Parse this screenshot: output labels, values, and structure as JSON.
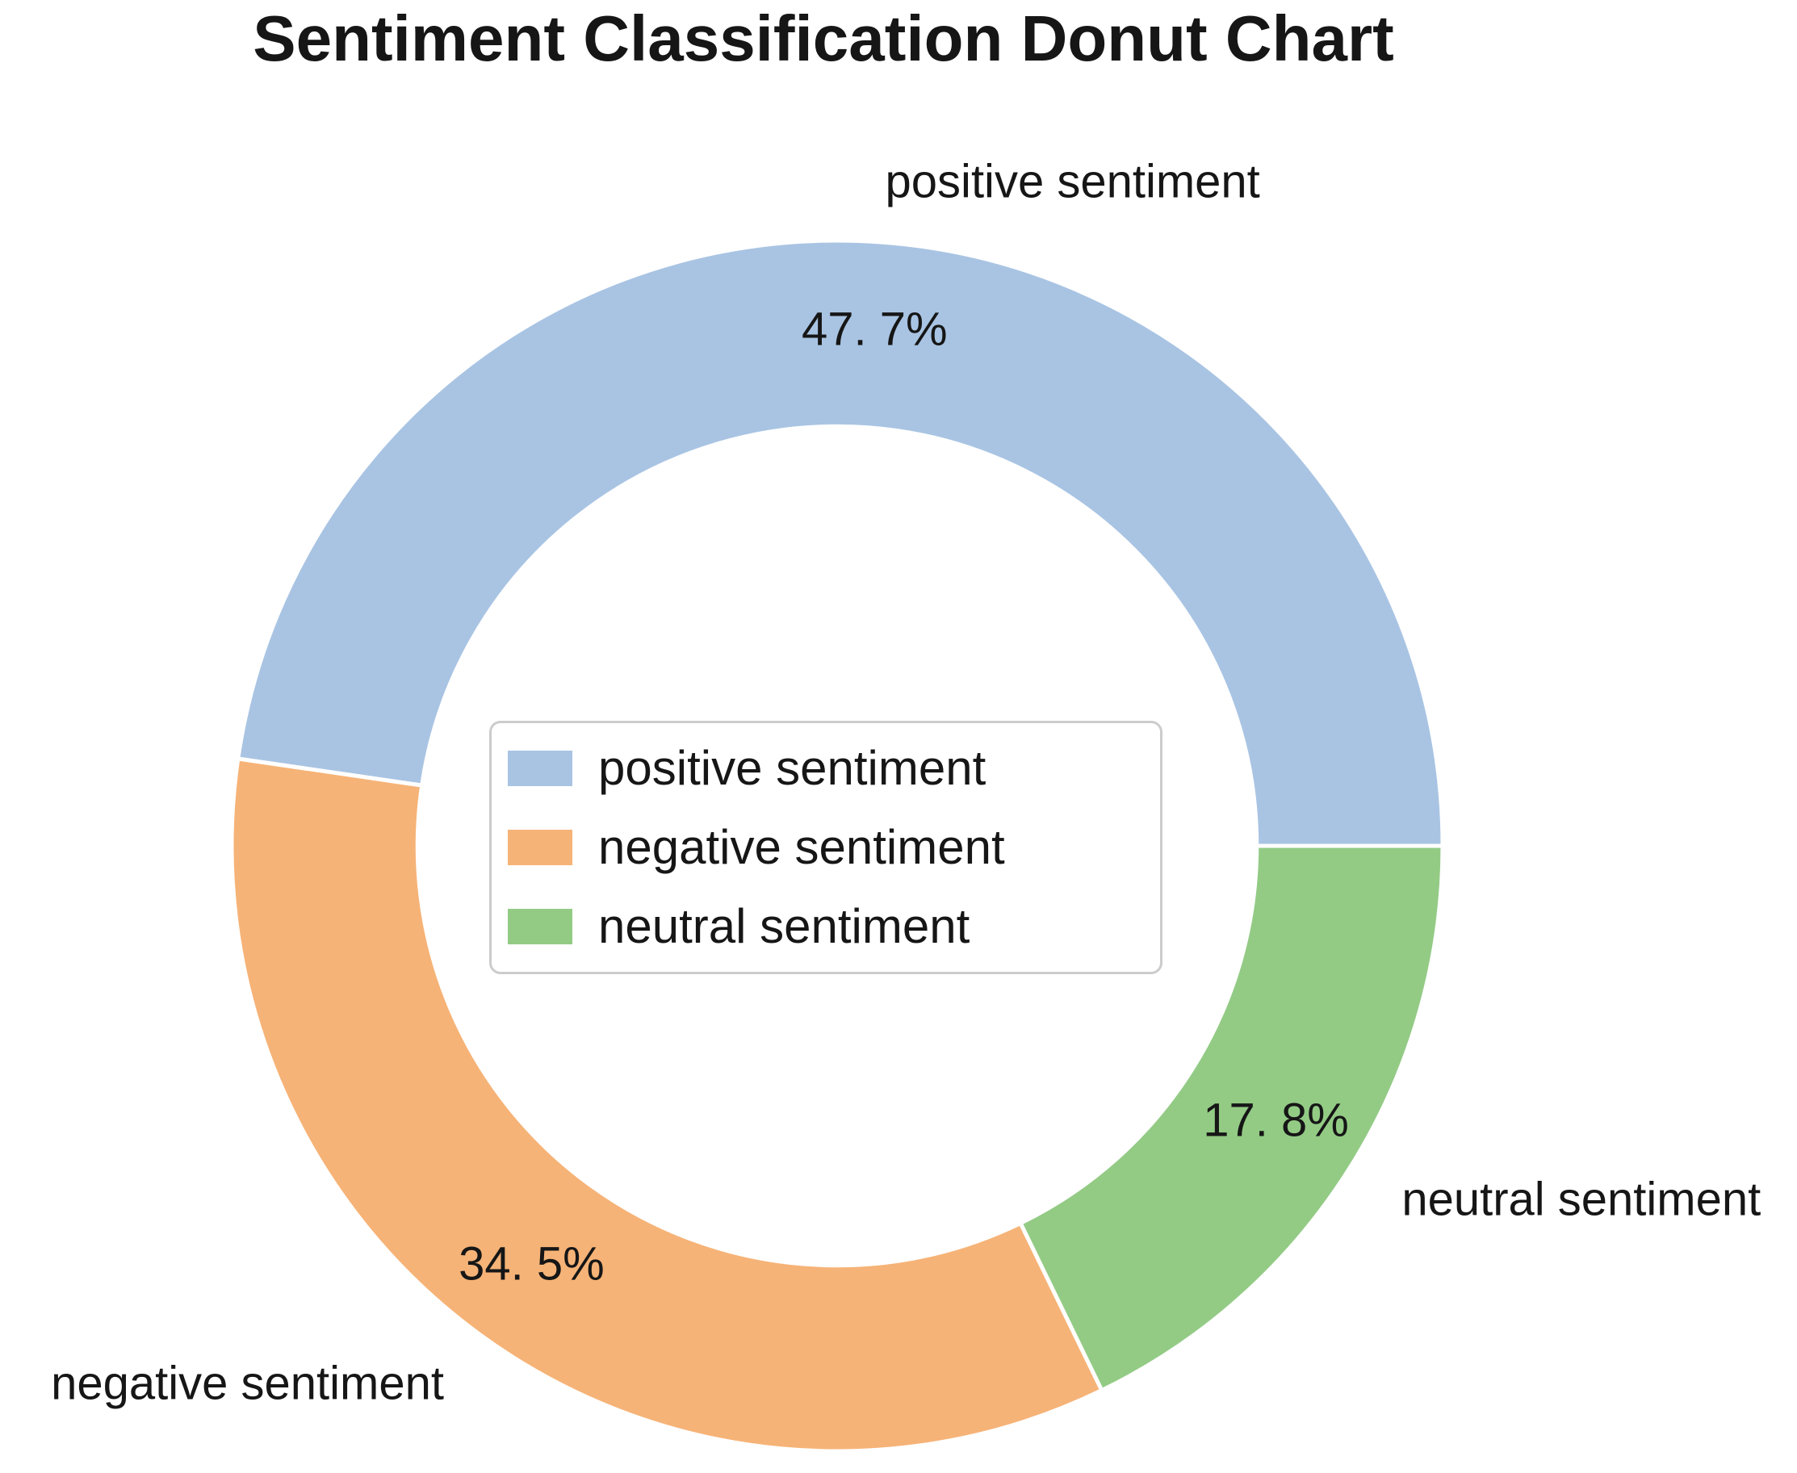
{
  "colors": {
    "background": "#ffffff",
    "text": "#161616",
    "legend_border": "#cccccc"
  },
  "chart_data": {
    "type": "pie",
    "subtype": "donut",
    "title": "Sentiment Classification Donut Chart",
    "categories": [
      "positive sentiment",
      "negative sentiment",
      "neutral sentiment"
    ],
    "values": [
      47.7,
      34.5,
      17.8
    ],
    "unit": "%",
    "pct_labels": [
      "47. 7%",
      "34. 5%",
      "17. 8%"
    ],
    "colors": [
      "#a9c4e3",
      "#f6b377",
      "#93cb85"
    ],
    "start_angle_deg": 0,
    "direction": "counterclockwise",
    "donut_hole_ratio": 0.693,
    "pct_label_distance": 0.855,
    "category_label_distance": 1.1,
    "legend": {
      "position": "center",
      "entries": [
        "positive sentiment",
        "negative sentiment",
        "neutral sentiment"
      ]
    }
  }
}
